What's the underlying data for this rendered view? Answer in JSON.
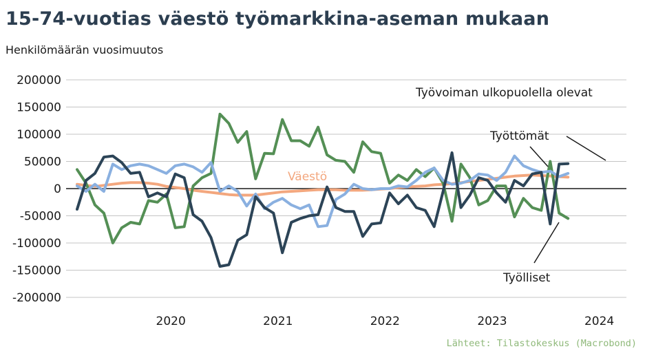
{
  "title": "15-74-vuotias väestö työmarkkina-aseman mukaan",
  "subtitle": "Henkilömäärän vuosimuutos",
  "source": "Lähteet: Tilastokeskus (Macrobond)",
  "colors": {
    "Työlliset": "#548f55",
    "Työttömät": "#8ab0e0",
    "Työvoiman ulkopuolella olevat": "#2c4457",
    "Väestö": "#f3a77e"
  },
  "chart_data": {
    "type": "line",
    "y_ticks": [
      200000,
      150000,
      100000,
      50000,
      0,
      -50000,
      -100000,
      -150000,
      -200000
    ],
    "y_tick_labels": [
      "200000",
      "150000",
      "100000",
      "50000",
      "0",
      "-50000",
      "-100000",
      "-150000",
      "-200000"
    ],
    "ylim": [
      -200000,
      200000
    ],
    "x_ticks": [
      "2020",
      "2021",
      "2022",
      "2023",
      "2024"
    ],
    "x_start": "2019-08",
    "x_end": "2024-09",
    "grid": true,
    "series": [
      {
        "name": "Työlliset",
        "label": "Työlliset",
        "values": [
          35000,
          10000,
          -30000,
          -45000,
          -100000,
          -72000,
          -62000,
          -65000,
          -22000,
          -25000,
          -10000,
          -72000,
          -70000,
          5000,
          20000,
          28000,
          137000,
          120000,
          85000,
          105000,
          18000,
          65000,
          64000,
          127000,
          88000,
          88000,
          78000,
          113000,
          62000,
          52000,
          50000,
          30000,
          86000,
          68000,
          65000,
          10000,
          25000,
          15000,
          35000,
          22000,
          38000,
          10000,
          -60000,
          45000,
          20000,
          -30000,
          -22000,
          5000,
          5000,
          -52000,
          -18000,
          -35000,
          -40000,
          50000,
          -45000,
          -55000
        ]
      },
      {
        "name": "Työttömät",
        "label": "Työttömät",
        "values": [
          5000,
          -5000,
          8000,
          -5000,
          45000,
          35000,
          42000,
          45000,
          42000,
          35000,
          28000,
          42000,
          45000,
          40000,
          30000,
          48000,
          -5000,
          5000,
          -5000,
          -32000,
          -10000,
          -37000,
          -25000,
          -18000,
          -30000,
          -37000,
          -30000,
          -70000,
          -68000,
          -20000,
          -10000,
          8000,
          0,
          -2000,
          0,
          0,
          5000,
          3000,
          15000,
          30000,
          38000,
          15000,
          8000,
          10000,
          15000,
          27000,
          25000,
          15000,
          30000,
          60000,
          42000,
          35000,
          30000,
          32000,
          22000,
          28000
        ]
      },
      {
        "name": "Työvoiman ulkopuolella olevat",
        "label": "Työvoiman ulkopuolella olevat",
        "values": [
          -38000,
          15000,
          28000,
          58000,
          60000,
          48000,
          28000,
          30000,
          -15000,
          -8000,
          -15000,
          27000,
          20000,
          -48000,
          -60000,
          -90000,
          -143000,
          -140000,
          -95000,
          -85000,
          -15000,
          -35000,
          -45000,
          -118000,
          -62000,
          -55000,
          -50000,
          -48000,
          3000,
          -35000,
          -42000,
          -42000,
          -88000,
          -65000,
          -63000,
          -8000,
          -28000,
          -12000,
          -35000,
          -40000,
          -70000,
          -5000,
          66000,
          -35000,
          -12000,
          20000,
          15000,
          -8000,
          -25000,
          15000,
          5000,
          27000,
          30000,
          -65000,
          45000,
          46000
        ]
      },
      {
        "name": "Väestö",
        "label": "Väestö",
        "values": [
          8000,
          6000,
          4000,
          6000,
          8000,
          10000,
          11000,
          11000,
          10000,
          8000,
          4000,
          2000,
          0,
          -3000,
          -5000,
          -7000,
          -9000,
          -11000,
          -12000,
          -12000,
          -12000,
          -10000,
          -8000,
          -6000,
          -5000,
          -4000,
          -3000,
          -2000,
          -2000,
          -2000,
          -3000,
          -3000,
          -3000,
          -2000,
          -1000,
          0,
          2000,
          3000,
          4000,
          5000,
          7000,
          8000,
          9000,
          11000,
          13000,
          15000,
          17000,
          19000,
          21000,
          23000,
          24000,
          25000,
          24000,
          23000,
          22000,
          21000
        ]
      }
    ]
  }
}
